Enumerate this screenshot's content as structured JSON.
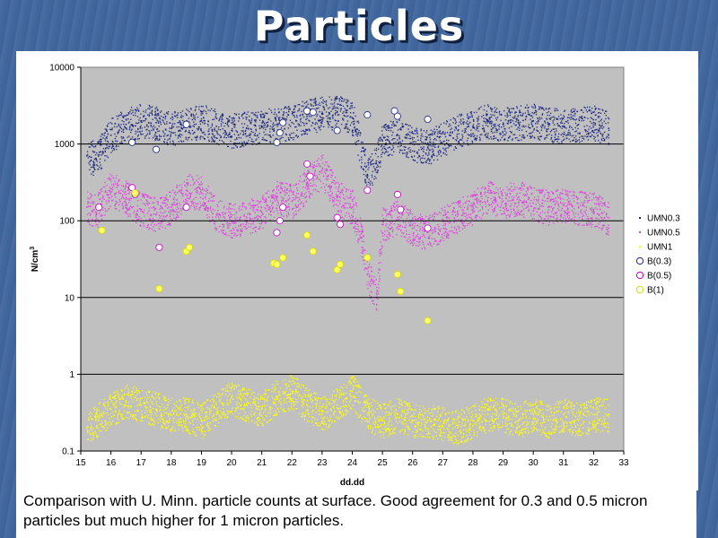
{
  "slide": {
    "title": "Particles",
    "caption": "Comparison with U. Minn. particle counts at surface. Good agreement for 0.3 and 0.5 micron particles but much higher for 1 micron particles."
  },
  "colors": {
    "background": "#41679f",
    "plot_area": "#c0c0c0",
    "umn03": "#1a237e",
    "umn05": "#e040e0",
    "umn1": "#ffff00",
    "b03_fill": "#ffffff",
    "b05_fill": "#ffffff",
    "b1_fill": "#ffff66"
  },
  "chart_data": {
    "type": "scatter",
    "xlabel": "dd.dd",
    "ylabel": "N/cm",
    "ylabel_superscript": "3",
    "xlim": [
      15,
      33
    ],
    "ylim": [
      0.1,
      10000
    ],
    "y_scale": "log",
    "x_ticks": [
      "15",
      "16",
      "17",
      "18",
      "19",
      "20",
      "21",
      "22",
      "23",
      "24",
      "25",
      "26",
      "27",
      "28",
      "29",
      "30",
      "31",
      "32",
      "33"
    ],
    "y_ticks": [
      "0.1",
      "1",
      "10",
      "100",
      "1000",
      "10000"
    ],
    "grid": "horizontal major lines",
    "legend_position": "right",
    "series": [
      {
        "name": "UMN0.3",
        "style": "dots",
        "note": "dense dot cloud",
        "x": [
          15.2,
          15.5,
          16.0,
          16.5,
          17.0,
          17.5,
          18.0,
          18.5,
          19.0,
          19.5,
          20.0,
          20.5,
          21.0,
          21.5,
          22.0,
          22.5,
          23.0,
          23.5,
          24.0,
          24.3,
          24.5,
          24.8,
          25.0,
          25.5,
          26.0,
          26.5,
          27.5,
          28.0,
          28.5,
          29.0,
          29.5,
          30.0,
          30.5,
          31.0,
          31.5,
          32.0,
          32.5
        ],
        "y": [
          700,
          650,
          1300,
          1800,
          2000,
          1900,
          1600,
          1800,
          2000,
          1700,
          1500,
          1600,
          1700,
          1800,
          1900,
          2300,
          2500,
          2600,
          2200,
          800,
          400,
          600,
          1100,
          1300,
          1000,
          900,
          1500,
          1700,
          2000,
          1800,
          1900,
          2000,
          1800,
          1700,
          1800,
          1900,
          1600
        ]
      },
      {
        "name": "UMN0.5",
        "style": "dots",
        "note": "dense dot cloud",
        "x": [
          15.2,
          15.5,
          16.0,
          16.5,
          17.0,
          17.5,
          18.0,
          18.5,
          19.0,
          19.5,
          20.0,
          20.5,
          21.0,
          21.5,
          22.0,
          22.5,
          23.0,
          23.5,
          24.0,
          24.3,
          24.5,
          24.8,
          25.0,
          25.5,
          26.0,
          26.5,
          27.5,
          28.0,
          28.5,
          29.0,
          29.5,
          30.0,
          30.5,
          31.0,
          31.5,
          32.0,
          32.5
        ],
        "y": [
          150,
          130,
          260,
          200,
          140,
          120,
          150,
          250,
          230,
          120,
          100,
          110,
          130,
          200,
          180,
          300,
          450,
          200,
          150,
          60,
          20,
          10,
          90,
          110,
          80,
          70,
          120,
          150,
          200,
          180,
          200,
          170,
          150,
          160,
          150,
          140,
          110
        ]
      },
      {
        "name": "UMN1",
        "style": "dots",
        "note": "dense dot cloud",
        "x": [
          15.2,
          15.5,
          16.0,
          16.5,
          17.0,
          17.5,
          18.0,
          18.5,
          19.0,
          19.5,
          20.0,
          20.5,
          21.0,
          21.5,
          22.0,
          22.5,
          23.0,
          23.5,
          24.0,
          24.5,
          25.0,
          25.5,
          26.0,
          26.5,
          27.5,
          28.0,
          28.5,
          29.0,
          29.5,
          30.0,
          30.5,
          31.0,
          31.5,
          32.0,
          32.5
        ],
        "y": [
          0.2,
          0.25,
          0.35,
          0.45,
          0.4,
          0.35,
          0.3,
          0.3,
          0.25,
          0.35,
          0.5,
          0.4,
          0.35,
          0.5,
          0.6,
          0.4,
          0.3,
          0.4,
          0.6,
          0.3,
          0.25,
          0.3,
          0.25,
          0.25,
          0.2,
          0.25,
          0.3,
          0.3,
          0.25,
          0.3,
          0.25,
          0.3,
          0.25,
          0.3,
          0.3
        ]
      },
      {
        "name": "B(0.3)",
        "style": "open-circle",
        "x": [
          16.7,
          17.5,
          18.5,
          21.5,
          21.6,
          21.7,
          22.5,
          22.7,
          23.5,
          24.5,
          25.4,
          25.5,
          26.5
        ],
        "y": [
          1050,
          850,
          1800,
          1050,
          1400,
          1900,
          2700,
          2600,
          1500,
          2400,
          2700,
          2300,
          2100
        ]
      },
      {
        "name": "B(0.5)",
        "style": "open-circle",
        "x": [
          15.6,
          16.7,
          16.8,
          17.6,
          18.5,
          21.5,
          21.6,
          21.7,
          22.5,
          22.6,
          23.5,
          23.6,
          24.5,
          25.5,
          25.6,
          26.5
        ],
        "y": [
          150,
          270,
          220,
          45,
          150,
          70,
          100,
          150,
          550,
          380,
          110,
          90,
          250,
          220,
          140,
          80
        ]
      },
      {
        "name": "B(1)",
        "style": "open-circle",
        "x": [
          15.7,
          16.8,
          17.6,
          18.5,
          18.6,
          21.4,
          21.5,
          21.7,
          22.5,
          22.7,
          23.5,
          23.6,
          24.5,
          25.5,
          25.6,
          26.5
        ],
        "y": [
          75,
          230,
          13,
          40,
          45,
          28,
          27,
          33,
          65,
          40,
          23,
          27,
          33,
          20,
          12,
          5
        ]
      }
    ]
  }
}
